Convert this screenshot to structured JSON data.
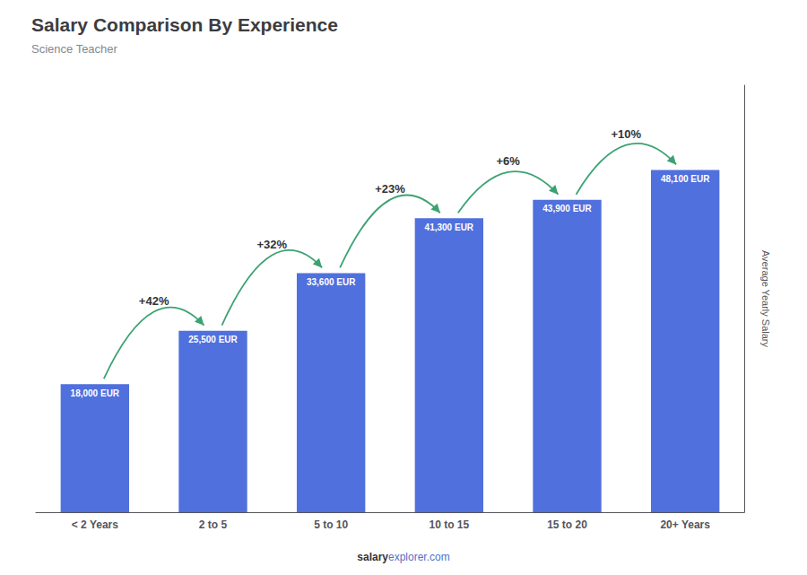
{
  "chart_data": {
    "type": "bar",
    "title": "Salary Comparison By Experience",
    "subtitle": "Science Teacher",
    "y_label": "Average Yearly Salary",
    "categories": [
      "< 2 Years",
      "2 to 5",
      "5 to 10",
      "10 to 15",
      "15 to 20",
      "20+ Years"
    ],
    "values": [
      18000,
      25500,
      33600,
      41300,
      43900,
      48100
    ],
    "value_labels": [
      "18,000 EUR",
      "25,500 EUR",
      "33,600 EUR",
      "41,300 EUR",
      "43,900 EUR",
      "48,100 EUR"
    ],
    "data_labels": true,
    "annotations": [
      "+42%",
      "+32%",
      "+23%",
      "+6%",
      "+10%"
    ],
    "footer": [
      "salary",
      "explorer.com"
    ],
    "ylim": [
      0,
      60000
    ],
    "tick_labels": "x",
    "grid": false
  }
}
